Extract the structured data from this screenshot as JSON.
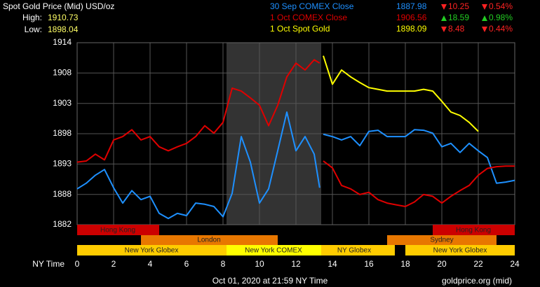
{
  "chart_data": {
    "type": "line",
    "title": "Spot Gold Price (Mid) USD/oz",
    "high_label": "High:",
    "high": "1910.73",
    "low_label": "Low:",
    "low": "1898.04",
    "x_label": "NY Time",
    "footer": "Oct 01, 2020 at 21:59 NY Time",
    "source": "goldprice.org (mid)",
    "sessions": [
      "Hong Kong",
      "Hong Kong",
      "London",
      "Sydney",
      "New York Globex",
      "New York COMEX",
      "NY Globex",
      "New York Globex"
    ],
    "xlim": [
      0,
      24
    ],
    "xticks": [
      0,
      2,
      4,
      6,
      8,
      10,
      12,
      14,
      16,
      18,
      20,
      22,
      24
    ],
    "ylim": [
      1882,
      1914
    ],
    "yticks": [
      {
        "value": 1882,
        "label": "1882"
      },
      {
        "value": 1887.33,
        "label": "1888"
      },
      {
        "value": 1892.67,
        "label": "1893"
      },
      {
        "value": 1898,
        "label": "1898"
      },
      {
        "value": 1903.33,
        "label": "1903"
      },
      {
        "value": 1908.67,
        "label": "1908"
      },
      {
        "value": 1914,
        "label": "1914"
      }
    ],
    "grid": true,
    "x": [
      0,
      0.5,
      1,
      1.5,
      2,
      2.5,
      3,
      3.5,
      4,
      4.5,
      5,
      5.5,
      6,
      6.5,
      7,
      7.5,
      8,
      8.5,
      9,
      9.5,
      10,
      10.5,
      11,
      11.5,
      12,
      12.5,
      13,
      13.3,
      13.4,
      13.5,
      14,
      14.5,
      15,
      15.5,
      16,
      16.5,
      17,
      17.5,
      18,
      18.5,
      19,
      19.5,
      20,
      20.5,
      21,
      21.5,
      22,
      22.5,
      23,
      23.5,
      24
    ],
    "series": [
      {
        "name": "30 Sep COMEX Close",
        "color": "#1e90ff",
        "stats": {
          "price": "1887.98",
          "change": "10.25",
          "change_pct": "0.54%",
          "direction": "down"
        },
        "values": [
          1888.3,
          1889.3,
          1890.7,
          1891.7,
          1888.5,
          1885.8,
          1888.0,
          1886.4,
          1887.0,
          1884.0,
          1883.1,
          1884.0,
          1883.6,
          1885.8,
          1885.6,
          1885.2,
          1883.4,
          1887.5,
          1897.5,
          1893.0,
          1885.8,
          1888.3,
          1895.0,
          1901.8,
          1895.0,
          1897.5,
          1894.4,
          1888.5,
          null,
          1897.9,
          1897.5,
          1896.9,
          1897.5,
          1895.9,
          1898.4,
          1898.6,
          1897.5,
          1897.5,
          1897.5,
          1898.7,
          1898.6,
          1898.1,
          1895.7,
          1896.3,
          1894.7,
          1896.3,
          1895.0,
          1893.8,
          1889.3,
          1889.5,
          1889.8
        ]
      },
      {
        "name": "1 Oct COMEX Close",
        "color": "#e00000",
        "stats": {
          "price": "1906.56",
          "change": "18.59",
          "change_pct": "0.98%",
          "direction": "up"
        },
        "values": [
          1893.0,
          1893.2,
          1894.4,
          1893.4,
          1896.9,
          1897.5,
          1898.7,
          1896.9,
          1897.5,
          1895.7,
          1895.0,
          1895.7,
          1896.3,
          1897.5,
          1899.4,
          1898.1,
          1900.0,
          1906.0,
          1905.5,
          1904.3,
          1903.0,
          1899.4,
          1903.0,
          1908.0,
          1910.4,
          1909.2,
          1911.0,
          1910.4,
          null,
          1893.2,
          1892.0,
          1888.9,
          1888.3,
          1887.3,
          1887.7,
          1886.4,
          1885.8,
          1885.5,
          1885.2,
          1886.0,
          1887.3,
          1887.0,
          1885.8,
          1887.0,
          1888.0,
          1888.9,
          1890.7,
          1891.9,
          1892.2,
          1892.3,
          1892.3
        ]
      },
      {
        "name": "1 Oct Spot Gold",
        "color": "#ffff00",
        "stats": {
          "price": "1898.09",
          "change": "8.48",
          "change_pct": "0.44%",
          "direction": "down"
        },
        "values": [
          null,
          null,
          null,
          null,
          null,
          null,
          null,
          null,
          null,
          null,
          null,
          null,
          null,
          null,
          null,
          null,
          null,
          null,
          null,
          null,
          null,
          null,
          null,
          null,
          null,
          null,
          null,
          null,
          null,
          1911.7,
          1906.7,
          1909.2,
          1908.0,
          1907.0,
          1906.1,
          1905.8,
          1905.5,
          1905.5,
          1905.5,
          1905.5,
          1905.8,
          1905.5,
          1903.7,
          1901.8,
          1901.2,
          1900.0,
          1898.4,
          null,
          null,
          null,
          null
        ]
      }
    ]
  }
}
